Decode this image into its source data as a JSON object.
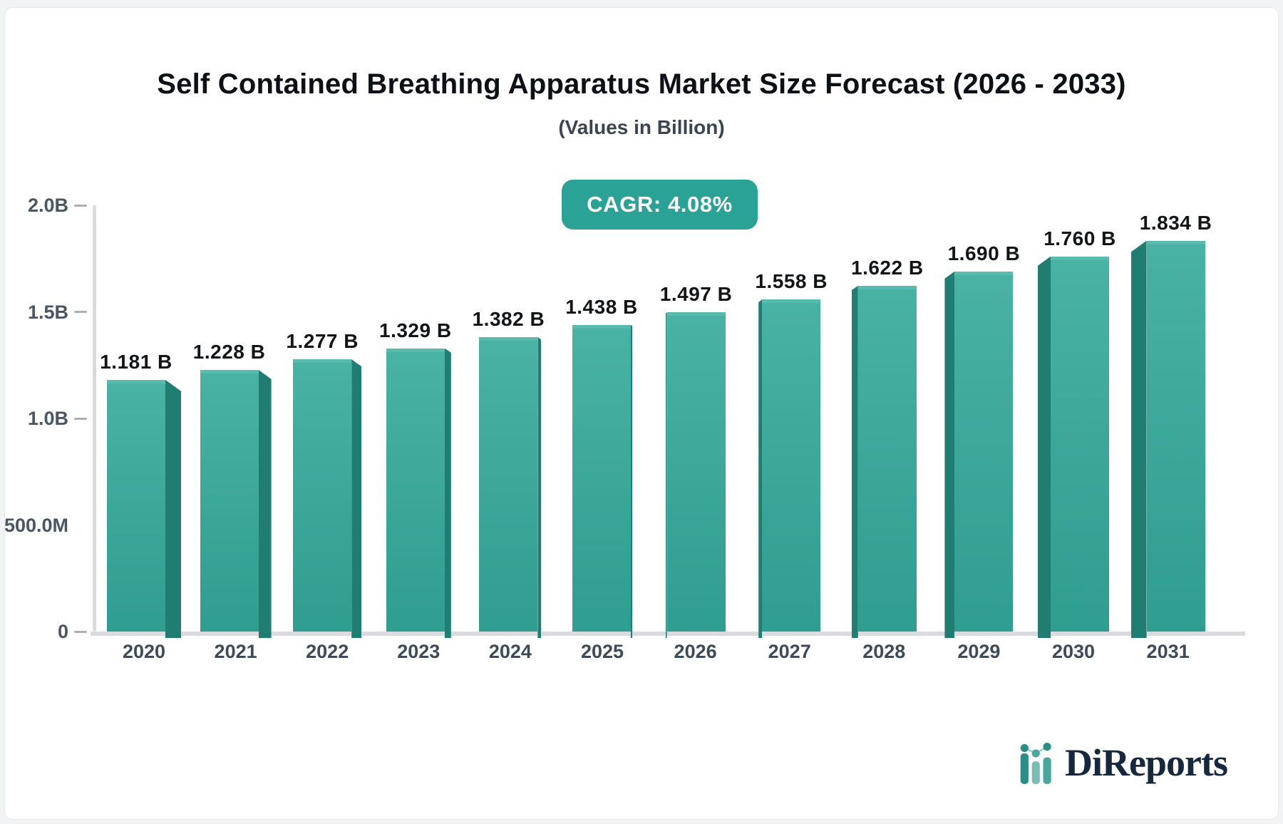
{
  "header": {
    "title": "Self Contained Breathing Apparatus Market Size Forecast (2026 - 2033)",
    "subtitle": "(Values in Billion)",
    "cagr_label": "CAGR: 4.08%"
  },
  "chart_data": {
    "type": "bar",
    "title": "Self Contained Breathing Apparatus Market Size Forecast (2026 - 2033)",
    "subtitle": "(Values in Billion)",
    "cagr_percent": 4.08,
    "categories": [
      "2020",
      "2021",
      "2022",
      "2023",
      "2024",
      "2025",
      "2026",
      "2027",
      "2028",
      "2029",
      "2030",
      "2031"
    ],
    "values": [
      1.181,
      1.228,
      1.277,
      1.329,
      1.382,
      1.438,
      1.497,
      1.558,
      1.622,
      1.69,
      1.76,
      1.834
    ],
    "value_labels": [
      "1.181 B",
      "1.228 B",
      "1.277 B",
      "1.329 B",
      "1.382 B",
      "1.438 B",
      "1.497 B",
      "1.558 B",
      "1.622 B",
      "1.690 B",
      "1.760 B",
      "1.834 B"
    ],
    "xlabel": "",
    "ylabel": "",
    "ylim": [
      0,
      2.0
    ],
    "y_ticks": [
      {
        "label": "2.0B",
        "value": 2.0,
        "dash": true
      },
      {
        "label": "1.5B",
        "value": 1.5,
        "dash": true
      },
      {
        "label": "1.0B",
        "value": 1.0,
        "dash": true
      },
      {
        "label": "500.0M",
        "value": 0.5,
        "dash": false
      },
      {
        "label": "0",
        "value": 0.0,
        "dash": true
      }
    ],
    "grid": "off",
    "legend": "none"
  },
  "branding": {
    "logo_text": "DiReports"
  },
  "colors": {
    "page_bg": "#f2f3f5",
    "accent": "#2aa296",
    "bar_top": "#49b2a4",
    "bar_bottom": "#2f9d90",
    "bar_highlight": "#57bcae",
    "bar_side": "#1f7d72",
    "axis": "#d9dbde",
    "tick": "#a9afb7",
    "tick_label": "#4b5663",
    "value_label": "#121517",
    "year_label": "#3d4a59",
    "title": "#0d1117",
    "subtitle": "#3a4551",
    "logo_text": "#16283e",
    "logo_teal_dark": "#2b8e86",
    "logo_teal_mid": "#49a79e",
    "logo_teal_light": "#7cbcb4",
    "logo_line": "#9fcdc7"
  }
}
